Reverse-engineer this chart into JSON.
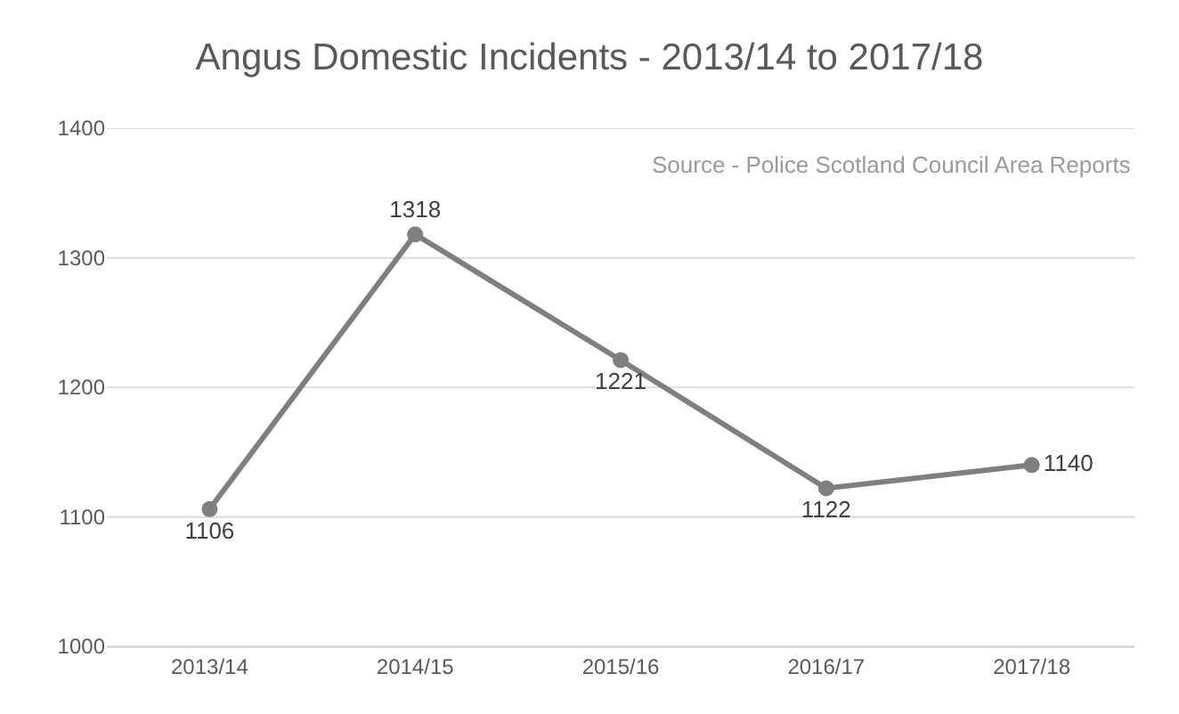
{
  "chart_data": {
    "type": "line",
    "title": "Angus Domestic Incidents - 2013/14 to 2017/18",
    "categories": [
      "2013/14",
      "2014/15",
      "2015/16",
      "2016/17",
      "2017/18"
    ],
    "series": [
      {
        "color": "#7f7f7f",
        "values": [
          1106,
          1318,
          1221,
          1122,
          1140
        ]
      }
    ],
    "ylim": [
      1000,
      1400
    ],
    "yticks": [
      1000,
      1100,
      1200,
      1300,
      1400
    ],
    "grid": "y",
    "marker": "circle",
    "line_style": "solid",
    "data_labels": true,
    "annotations": [
      "Source - Police Scotland Council Area Reports"
    ]
  }
}
